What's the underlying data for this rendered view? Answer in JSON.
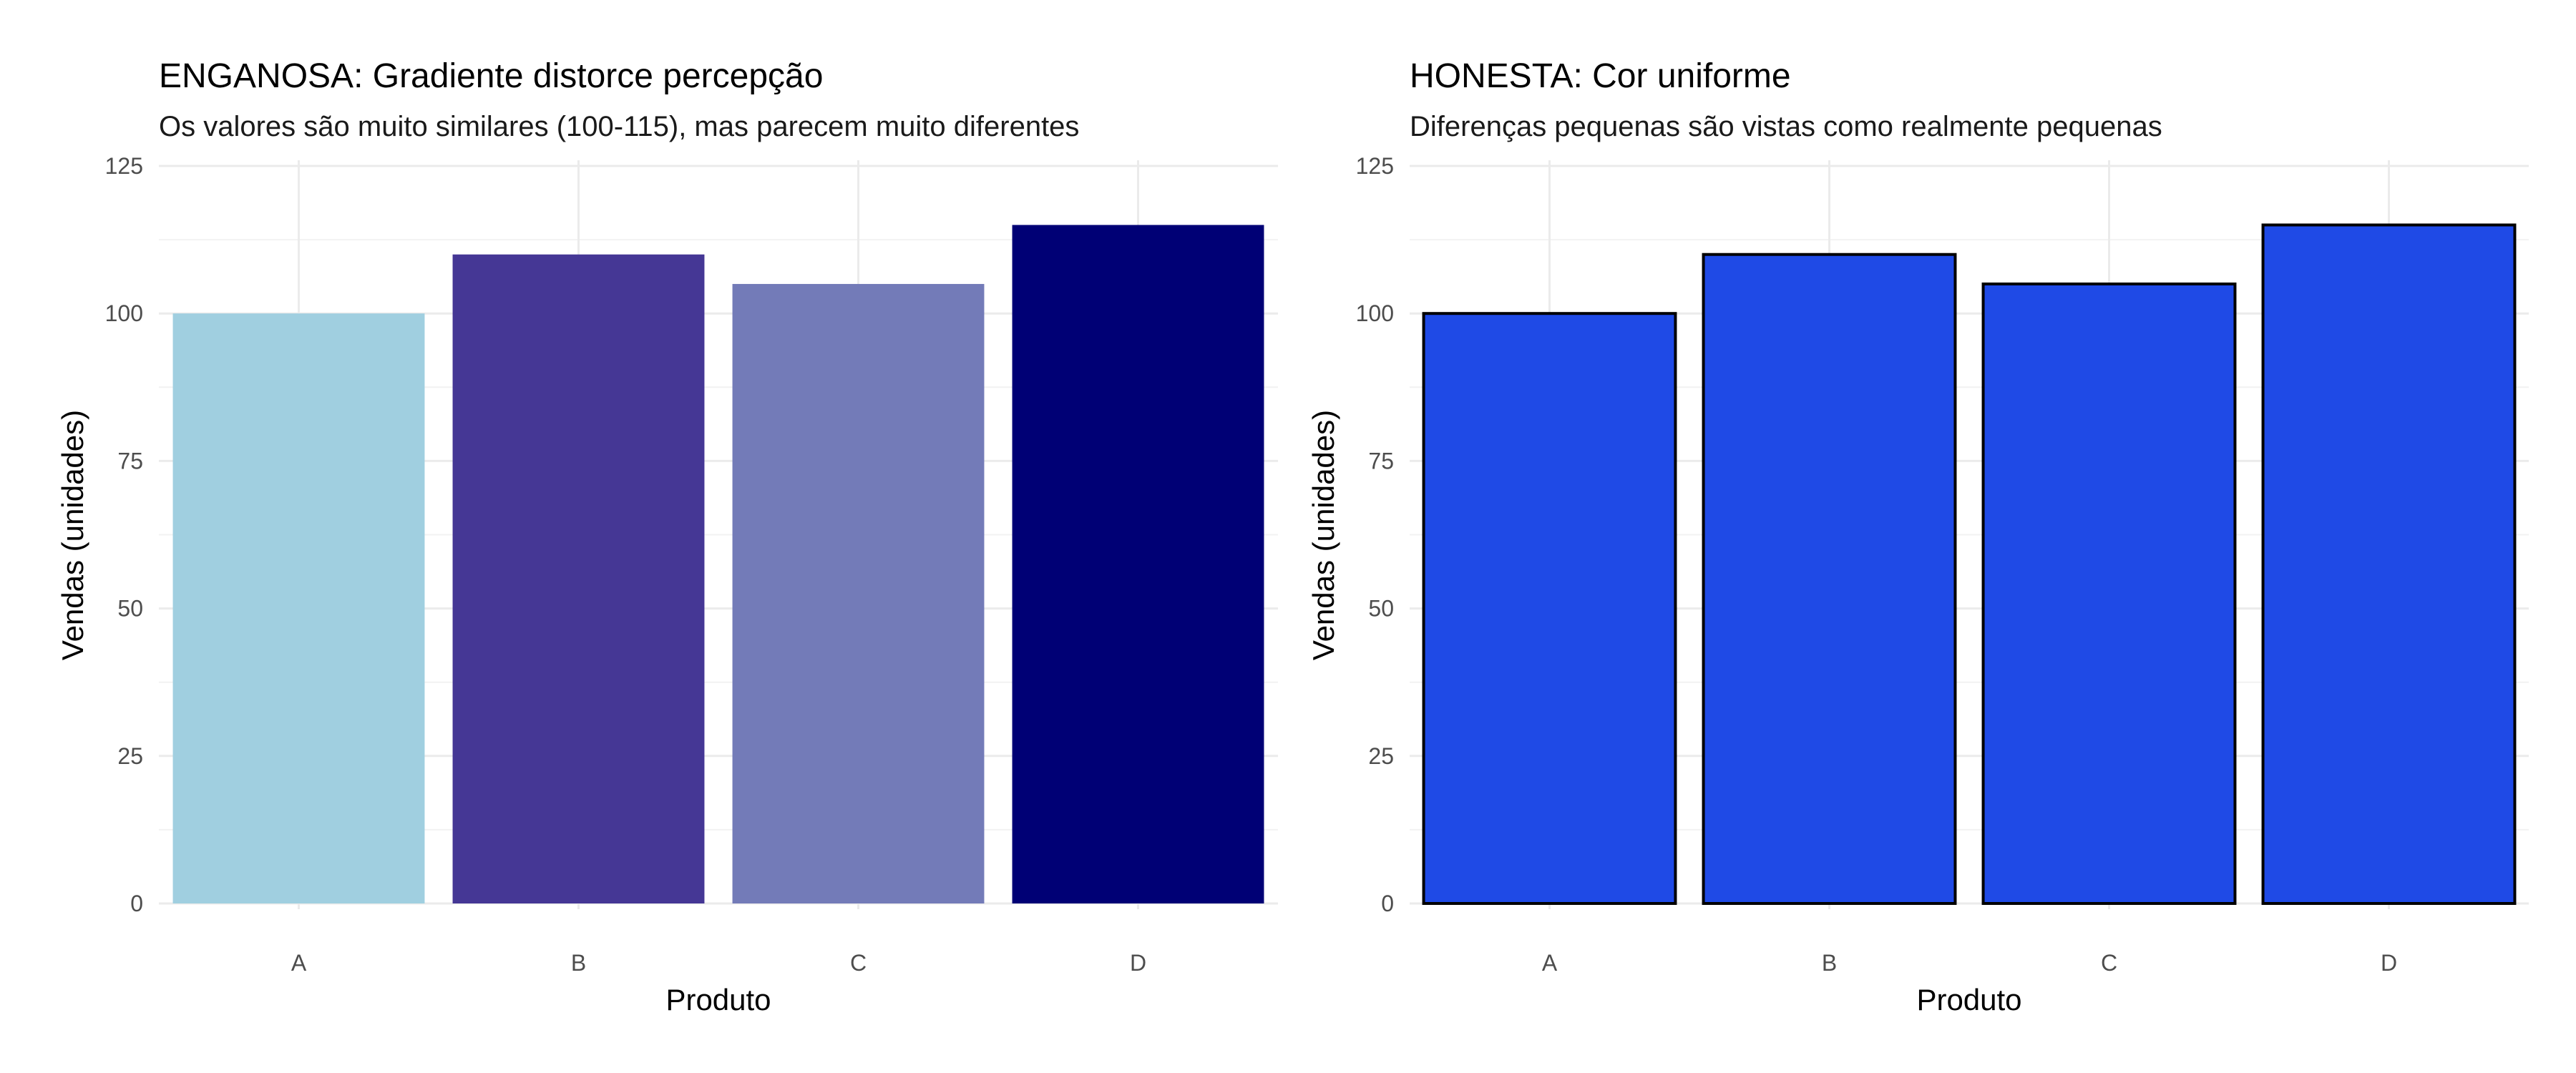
{
  "chart_data": [
    {
      "type": "bar",
      "title": "ENGANOSA: Gradiente distorce percepção",
      "subtitle": "Os valores são muito similares (100-115), mas parecem muito diferentes",
      "xlabel": "Produto",
      "ylabel": "Vendas (unidades)",
      "categories": [
        "A",
        "B",
        "C",
        "D"
      ],
      "values": [
        100,
        110,
        105,
        115
      ],
      "ylim": [
        0,
        125
      ],
      "yticks": [
        0,
        25,
        50,
        75,
        100,
        125
      ],
      "grid": true,
      "bar_colors": [
        "#a0cfe0",
        "#453795",
        "#737bb8",
        "#000075"
      ],
      "bar_outline": null
    },
    {
      "type": "bar",
      "title": "HONESTA: Cor uniforme",
      "subtitle": "Diferenças pequenas são vistas como realmente pequenas",
      "xlabel": "Produto",
      "ylabel": "Vendas (unidades)",
      "categories": [
        "A",
        "B",
        "C",
        "D"
      ],
      "values": [
        100,
        110,
        105,
        115
      ],
      "ylim": [
        0,
        125
      ],
      "yticks": [
        0,
        25,
        50,
        75,
        100,
        125
      ],
      "grid": true,
      "bar_colors": [
        "#1f4ae6",
        "#1f4ae6",
        "#1f4ae6",
        "#1f4ae6"
      ],
      "bar_outline": "#000000"
    }
  ]
}
